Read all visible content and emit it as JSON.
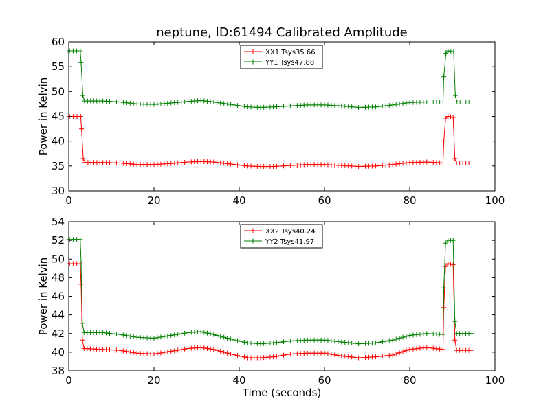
{
  "title": "neptune, ID:61494 Calibrated Amplitude",
  "chart_data": [
    {
      "type": "line",
      "ylabel": "Power in Kelvin",
      "xlabel": "",
      "xlim": [
        0,
        100
      ],
      "ylim": [
        30,
        60
      ],
      "xticks": [
        "0",
        "20",
        "40",
        "60",
        "80",
        "100"
      ],
      "yticks": [
        "30",
        "35",
        "40",
        "45",
        "50",
        "55",
        "60"
      ],
      "legend_position": "top-center",
      "series": [
        {
          "name": "XX1 Tsys35.66",
          "color": "#ff0000",
          "marker": "plus",
          "points": [
            [
              0.2,
              45
            ],
            [
              2.8,
              45
            ],
            [
              3.0,
              42.5
            ],
            [
              3.4,
              36.5
            ],
            [
              3.8,
              35.7
            ],
            [
              8,
              35.7
            ],
            [
              12,
              35.6
            ],
            [
              16,
              35.3
            ],
            [
              20,
              35.3
            ],
            [
              24,
              35.5
            ],
            [
              28,
              35.8
            ],
            [
              31,
              35.9
            ],
            [
              34,
              35.8
            ],
            [
              38,
              35.4
            ],
            [
              42,
              35.0
            ],
            [
              45,
              34.9
            ],
            [
              48,
              34.9
            ],
            [
              52,
              35.1
            ],
            [
              56,
              35.3
            ],
            [
              60,
              35.3
            ],
            [
              64,
              35.1
            ],
            [
              68,
              34.9
            ],
            [
              72,
              35.0
            ],
            [
              76,
              35.3
            ],
            [
              80,
              35.7
            ],
            [
              84,
              35.8
            ],
            [
              87.8,
              35.6
            ],
            [
              88,
              40
            ],
            [
              88.4,
              44.5
            ],
            [
              89,
              45
            ],
            [
              90.2,
              44.8
            ],
            [
              90.6,
              36.5
            ],
            [
              91,
              35.6
            ],
            [
              94.6,
              35.6
            ]
          ]
        },
        {
          "name": "YY1 Tsys47.88",
          "color": "#008000",
          "marker": "plus",
          "points": [
            [
              0.2,
              58.2
            ],
            [
              2.7,
              58.2
            ],
            [
              2.9,
              55.8
            ],
            [
              3.3,
              49.2
            ],
            [
              3.7,
              48.1
            ],
            [
              8,
              48.1
            ],
            [
              12,
              47.9
            ],
            [
              16,
              47.5
            ],
            [
              20,
              47.4
            ],
            [
              24,
              47.7
            ],
            [
              28,
              48.0
            ],
            [
              31,
              48.2
            ],
            [
              34,
              47.9
            ],
            [
              38,
              47.4
            ],
            [
              42,
              46.9
            ],
            [
              45,
              46.8
            ],
            [
              48,
              46.9
            ],
            [
              52,
              47.1
            ],
            [
              56,
              47.3
            ],
            [
              60,
              47.3
            ],
            [
              64,
              47.1
            ],
            [
              68,
              46.8
            ],
            [
              72,
              46.9
            ],
            [
              76,
              47.3
            ],
            [
              80,
              47.8
            ],
            [
              84,
              47.9
            ],
            [
              87.8,
              47.9
            ],
            [
              88,
              53
            ],
            [
              88.5,
              57.7
            ],
            [
              89,
              58.2
            ],
            [
              90.3,
              58.0
            ],
            [
              90.7,
              49.2
            ],
            [
              91.1,
              47.9
            ],
            [
              94.6,
              47.9
            ]
          ]
        }
      ]
    },
    {
      "type": "line",
      "ylabel": "Power in Kelvin",
      "xlabel": "Time (seconds)",
      "xlim": [
        0,
        100
      ],
      "ylim": [
        38,
        54
      ],
      "xticks": [
        "0",
        "20",
        "40",
        "60",
        "80",
        "100"
      ],
      "yticks": [
        "38",
        "40",
        "42",
        "44",
        "46",
        "48",
        "50",
        "52",
        "54"
      ],
      "legend_position": "top-center",
      "series": [
        {
          "name": "XX2 Tsys40.24",
          "color": "#ff0000",
          "marker": "plus",
          "points": [
            [
              0.2,
              49.5
            ],
            [
              2.7,
              49.5
            ],
            [
              2.9,
              47.3
            ],
            [
              3.2,
              41.3
            ],
            [
              3.6,
              40.4
            ],
            [
              8,
              40.3
            ],
            [
              12,
              40.2
            ],
            [
              16,
              39.9
            ],
            [
              20,
              39.8
            ],
            [
              24,
              40.1
            ],
            [
              28,
              40.4
            ],
            [
              31,
              40.5
            ],
            [
              34,
              40.3
            ],
            [
              38,
              39.8
            ],
            [
              42,
              39.4
            ],
            [
              45,
              39.4
            ],
            [
              48,
              39.5
            ],
            [
              52,
              39.8
            ],
            [
              56,
              39.9
            ],
            [
              60,
              39.9
            ],
            [
              64,
              39.6
            ],
            [
              68,
              39.4
            ],
            [
              72,
              39.5
            ],
            [
              76,
              39.7
            ],
            [
              80,
              40.3
            ],
            [
              84,
              40.5
            ],
            [
              87.8,
              40.3
            ],
            [
              88,
              44.8
            ],
            [
              88.4,
              49.2
            ],
            [
              89,
              49.5
            ],
            [
              90.2,
              49.4
            ],
            [
              90.6,
              41.3
            ],
            [
              91,
              40.2
            ],
            [
              94.6,
              40.2
            ]
          ]
        },
        {
          "name": "YY2 Tsys41.97",
          "color": "#008000",
          "marker": "plus",
          "points": [
            [
              0.2,
              52.1
            ],
            [
              2.7,
              52.1
            ],
            [
              2.9,
              49.7
            ],
            [
              3.2,
              43.1
            ],
            [
              3.6,
              42.1
            ],
            [
              8,
              42.1
            ],
            [
              12,
              41.9
            ],
            [
              16,
              41.6
            ],
            [
              20,
              41.5
            ],
            [
              24,
              41.8
            ],
            [
              28,
              42.1
            ],
            [
              31,
              42.2
            ],
            [
              34,
              41.9
            ],
            [
              38,
              41.4
            ],
            [
              42,
              41.0
            ],
            [
              45,
              40.9
            ],
            [
              48,
              41.0
            ],
            [
              52,
              41.2
            ],
            [
              56,
              41.3
            ],
            [
              60,
              41.3
            ],
            [
              64,
              41.1
            ],
            [
              68,
              40.9
            ],
            [
              72,
              41.0
            ],
            [
              76,
              41.3
            ],
            [
              80,
              41.8
            ],
            [
              84,
              42.0
            ],
            [
              87.8,
              41.9
            ],
            [
              88,
              46.9
            ],
            [
              88.4,
              51.7
            ],
            [
              89,
              52.0
            ],
            [
              90.2,
              52.0
            ],
            [
              90.6,
              43.3
            ],
            [
              91,
              42.0
            ],
            [
              94.6,
              42.0
            ]
          ]
        }
      ]
    }
  ]
}
